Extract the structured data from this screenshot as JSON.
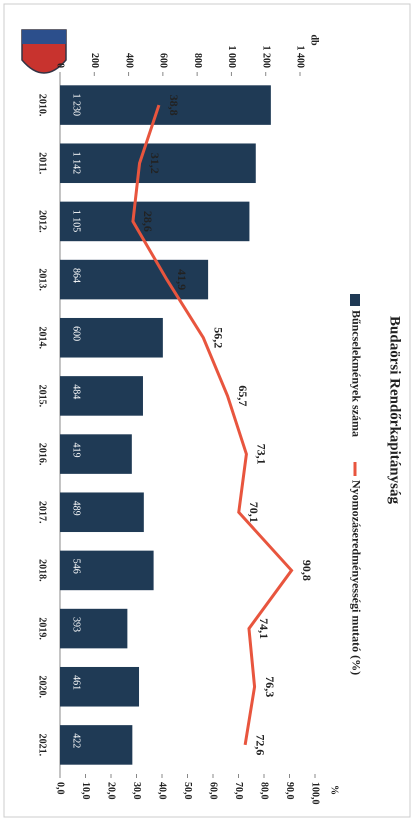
{
  "chart_data": {
    "type": "bar_line",
    "title": "Budaörsi Rendőrkapitányság",
    "y_label": "db",
    "y2_label": "%",
    "categories": [
      "2010.",
      "2011.",
      "2012.",
      "2013.",
      "2014.",
      "2015.",
      "2016.",
      "2017.",
      "2018.",
      "2019.",
      "2020.",
      "2021."
    ],
    "series": [
      {
        "name": "Bűncselekmények száma",
        "color": "#1f3a55",
        "kind": "bar",
        "values": [
          1230,
          1142,
          1105,
          864,
          600,
          484,
          419,
          489,
          546,
          393,
          461,
          422
        ],
        "value_labels": [
          "1 230",
          "1 142",
          "1 105",
          "864",
          "600",
          "484",
          "419",
          "489",
          "546",
          "393",
          "461",
          "422"
        ]
      },
      {
        "name": "Nyomozáseredményességi mutató (%)",
        "color": "#e8553e",
        "kind": "line",
        "axis": "y2",
        "values": [
          38.8,
          31.2,
          28.6,
          41.9,
          56.2,
          65.7,
          73.1,
          70.1,
          90.8,
          74.1,
          76.3,
          72.6
        ],
        "value_labels": [
          "38,8",
          "31,2",
          "28,6",
          "41,9",
          "56,2",
          "65,7",
          "73,1",
          "70,1",
          "90,8",
          "74,1",
          "76,3",
          "72,6"
        ]
      }
    ],
    "ylim": [
      0,
      1400
    ],
    "yticks": [
      0,
      200,
      400,
      600,
      800,
      {
        "value": 1000,
        "label": "1 000"
      },
      {
        "value": 1200,
        "label": "1 200"
      },
      {
        "value": 1400,
        "label": "1 400"
      }
    ],
    "y2lim": [
      0,
      100
    ],
    "y2ticks": [
      {
        "value": 0,
        "label": "0,0"
      },
      {
        "value": 10,
        "label": "10,0"
      },
      {
        "value": 20,
        "label": "20,0"
      },
      {
        "value": 30,
        "label": "30,0"
      },
      {
        "value": 40,
        "label": "40,0"
      },
      {
        "value": 50,
        "label": "50,0"
      },
      {
        "value": 60,
        "label": "60,0"
      },
      {
        "value": 70,
        "label": "70,0"
      },
      {
        "value": 80,
        "label": "80,0"
      },
      {
        "value": 90,
        "label": "90,0"
      },
      {
        "value": 100,
        "label": "100,0"
      }
    ],
    "legend": "top"
  }
}
